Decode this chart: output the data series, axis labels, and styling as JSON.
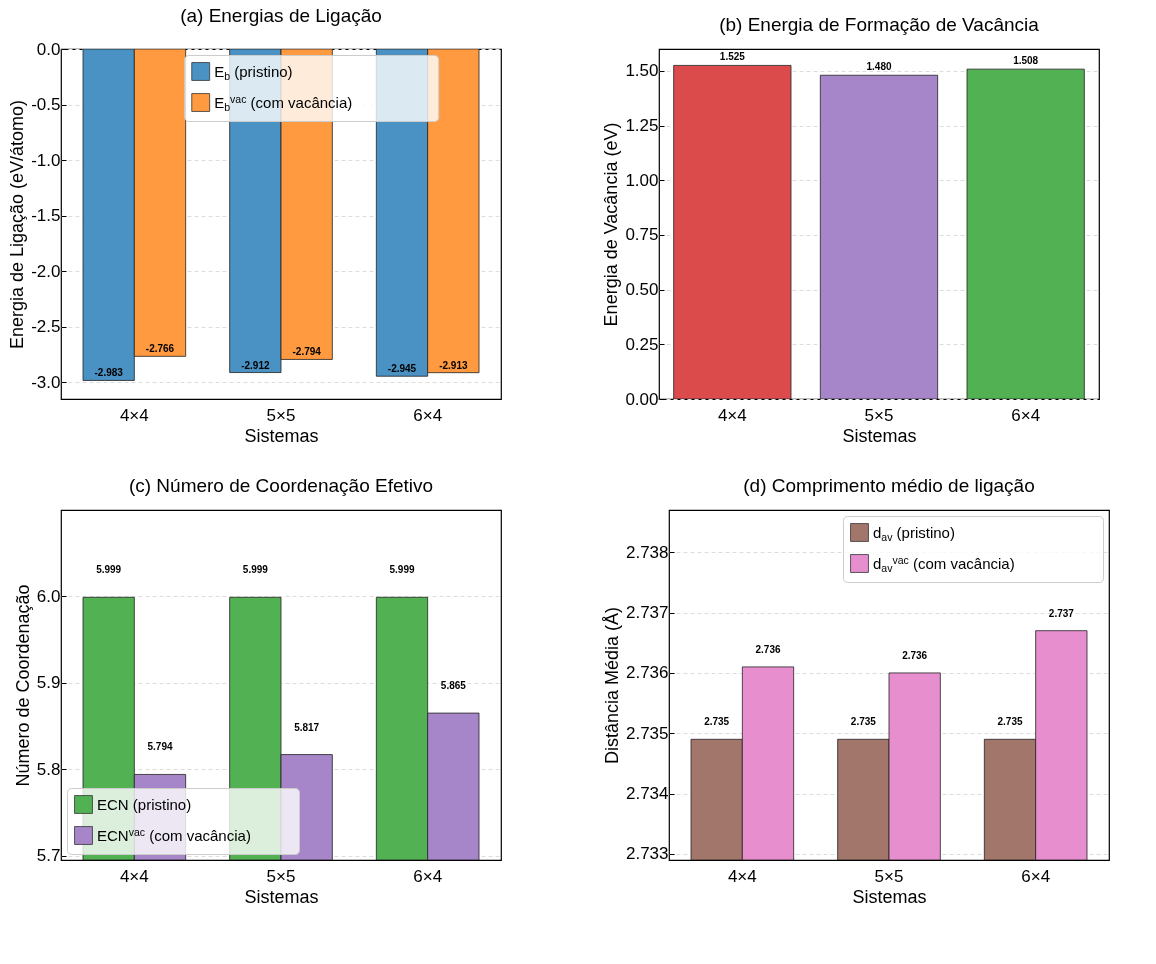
{
  "chart_data": [
    {
      "type": "bar",
      "title": "(a) Energias de Ligação",
      "xlabel": "Sistemas",
      "ylabel": "Energia de Ligação (eV/átomo)",
      "categories": [
        "4×4",
        "5×5",
        "6×4"
      ],
      "series": [
        {
          "name": "E$_{b}$ (pristino)",
          "color": "#4a91c4",
          "values": [
            -2.983,
            -2.912,
            -2.945
          ]
        },
        {
          "name": "E$_{b}$$^{vac}$ (com vacância)",
          "color": "#ff9a40",
          "values": [
            -2.766,
            -2.794,
            -2.913
          ]
        }
      ],
      "ylim": [
        -3.15,
        0
      ],
      "yticks": [
        {
          "value": 0,
          "label": "0.0"
        },
        {
          "value": -0.5,
          "label": "-0.5"
        },
        {
          "value": -1,
          "label": "-1.0"
        },
        {
          "value": -1.5,
          "label": "-1.5"
        },
        {
          "value": -2,
          "label": "-2.0"
        },
        {
          "value": -2.5,
          "label": "-2.5"
        },
        {
          "value": -3,
          "label": "-3.0"
        }
      ],
      "grid": "y",
      "legend": "top",
      "data_labels": true
    },
    {
      "type": "bar",
      "title": "(b) Energia de Formação de Vacância",
      "xlabel": "Sistemas",
      "ylabel": "Energia de Vacância (eV)",
      "categories": [
        "4×4",
        "5×5",
        "6×4"
      ],
      "values": [
        1.525,
        1.48,
        1.508
      ],
      "colors": [
        "#dc4b4c",
        "#a785c9",
        "#52b152"
      ],
      "ylim": [
        0,
        1.6
      ],
      "yticks": [
        {
          "value": 0,
          "label": "0.00"
        },
        {
          "value": 0.25,
          "label": "0.25"
        },
        {
          "value": 0.5,
          "label": "0.50"
        },
        {
          "value": 0.75,
          "label": "0.75"
        },
        {
          "value": 1,
          "label": "1.00"
        },
        {
          "value": 1.25,
          "label": "1.25"
        },
        {
          "value": 1.5,
          "label": "1.50"
        }
      ],
      "grid": "y",
      "value_labels": [
        "1.525",
        "1.480",
        "1.508"
      ]
    },
    {
      "type": "bar",
      "title": "(c) Número de Coordenação Efetivo",
      "xlabel": "Sistemas",
      "ylabel": "Número de Coordenação",
      "categories": [
        "4×4",
        "5×5",
        "6×4"
      ],
      "series": [
        {
          "name": "ECN (pristino)",
          "color": "#52b152",
          "values": [
            5.999,
            5.999,
            5.999
          ]
        },
        {
          "name": "ECN$^{vac}$ (com vacância)",
          "color": "#a785c9",
          "values": [
            5.794,
            5.817,
            5.865
          ]
        }
      ],
      "ylim": [
        5.695,
        6.1
      ],
      "yticks": [
        5.7,
        5.8,
        5.9,
        {
          "value": 6,
          "label": "6.0"
        }
      ],
      "grid": "y",
      "legend": "bottom left",
      "data_labels": true
    },
    {
      "type": "bar",
      "title": "(d) Comprimento médio de ligação",
      "xlabel": "Sistemas",
      "ylabel": "Distância Média (Å)",
      "categories": [
        "4×4",
        "5×5",
        "6×4"
      ],
      "series": [
        {
          "name": "d$_{av}$ (pristino)",
          "color": "#a3766c",
          "values": [
            2.7349,
            2.7349,
            2.7349
          ],
          "value_labels": [
            "2.735",
            "2.735",
            "2.735"
          ]
        },
        {
          "name": "d$_{av}$$^{vac}$ (com vacância)",
          "color": "#e78fce",
          "values": [
            2.7361,
            2.736,
            2.7367
          ],
          "value_labels": [
            "2.736",
            "2.736",
            "2.737"
          ]
        }
      ],
      "ylim": [
        2.7329,
        2.7387
      ],
      "yticks": [
        2.733,
        2.734,
        2.735,
        2.736,
        2.737,
        2.738
      ],
      "grid": "y",
      "legend": "top right"
    }
  ]
}
